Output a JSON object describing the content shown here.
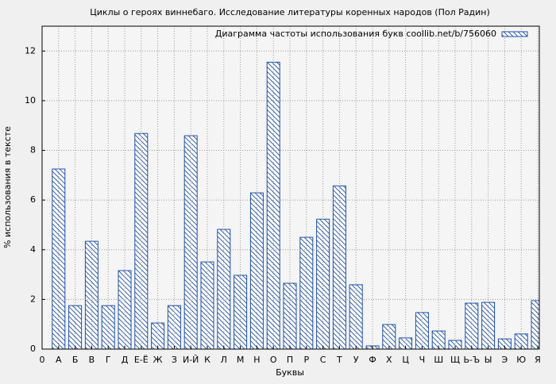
{
  "chart_data": {
    "type": "bar",
    "title": "Циклы о героях виннебаго. Исследование литературы коренных народов (Пол Радин)",
    "xlabel": "Буквы",
    "ylabel": "% использования в тексте",
    "categories": [
      "0",
      "А",
      "Б",
      "В",
      "Г",
      "Д",
      "Е-Ё",
      "Ж",
      "З",
      "И-Й",
      "К",
      "Л",
      "М",
      "Н",
      "О",
      "П",
      "Р",
      "С",
      "Т",
      "У",
      "Ф",
      "Х",
      "Ц",
      "Ч",
      "Ш",
      "Щ",
      "Ь-Ъ",
      "Ы",
      "Э",
      "Ю",
      "Я"
    ],
    "series": [
      {
        "name": "Диаграмма частоты использования букв coollib.net/b/756060",
        "color": "#1f4fa8",
        "values": [
          null,
          7.25,
          1.75,
          4.34,
          1.75,
          3.16,
          8.68,
          1.05,
          1.75,
          8.59,
          3.51,
          4.82,
          2.97,
          6.29,
          11.55,
          2.65,
          4.5,
          5.23,
          6.57,
          2.59,
          0.13,
          0.99,
          0.45,
          1.47,
          0.73,
          0.35,
          1.85,
          1.88,
          0.41,
          0.61,
          1.95
        ]
      }
    ],
    "ylim": [
      0,
      13
    ],
    "yticks": [
      0,
      2,
      4,
      6,
      8,
      10,
      12
    ],
    "grid": true,
    "legend": "upper right"
  }
}
